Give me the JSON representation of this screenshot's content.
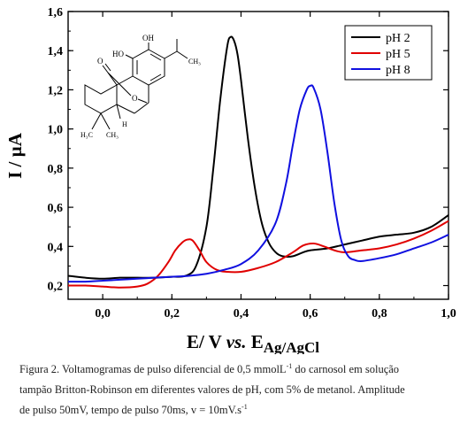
{
  "chart_data": {
    "type": "line",
    "xlabel_parts": {
      "lead": "E/ V ",
      "italic": "vs.",
      "symbol": " E",
      "subscript": "Ag/AgCl"
    },
    "ylabel": "I / µA",
    "xlim": [
      -0.1,
      1.0
    ],
    "ylim": [
      0.13,
      1.6
    ],
    "x_ticks": [
      0.0,
      0.2,
      0.4,
      0.6,
      0.8,
      1.0
    ],
    "x_tick_labels": [
      "0,0",
      "0,2",
      "0,4",
      "0,6",
      "0,8",
      "1,0"
    ],
    "y_ticks": [
      0.2,
      0.4,
      0.6,
      0.8,
      1.0,
      1.2,
      1.4,
      1.6
    ],
    "y_tick_labels": [
      "0,2",
      "0,4",
      "0,6",
      "0,8",
      "1,0",
      "1,2",
      "1,4",
      "1,6"
    ],
    "grid": false,
    "legend_position": "top-right",
    "series": [
      {
        "name": "pH 2",
        "color": "#000000",
        "x": [
          -0.1,
          -0.05,
          0.0,
          0.05,
          0.1,
          0.15,
          0.2,
          0.24,
          0.27,
          0.3,
          0.32,
          0.34,
          0.36,
          0.37,
          0.38,
          0.39,
          0.4,
          0.42,
          0.44,
          0.46,
          0.48,
          0.5,
          0.52,
          0.55,
          0.58,
          0.6,
          0.65,
          0.7,
          0.75,
          0.8,
          0.85,
          0.9,
          0.95,
          1.0
        ],
        "y": [
          0.25,
          0.24,
          0.235,
          0.24,
          0.24,
          0.24,
          0.245,
          0.25,
          0.3,
          0.5,
          0.8,
          1.15,
          1.42,
          1.47,
          1.45,
          1.38,
          1.25,
          0.95,
          0.7,
          0.52,
          0.42,
          0.37,
          0.35,
          0.35,
          0.37,
          0.38,
          0.39,
          0.41,
          0.43,
          0.45,
          0.46,
          0.47,
          0.5,
          0.56
        ]
      },
      {
        "name": "pH 5",
        "color": "#e00000",
        "x": [
          -0.1,
          -0.05,
          0.0,
          0.05,
          0.1,
          0.13,
          0.16,
          0.19,
          0.21,
          0.23,
          0.245,
          0.26,
          0.28,
          0.3,
          0.33,
          0.36,
          0.4,
          0.45,
          0.5,
          0.55,
          0.58,
          0.61,
          0.64,
          0.67,
          0.7,
          0.75,
          0.8,
          0.85,
          0.9,
          0.95,
          1.0
        ],
        "y": [
          0.2,
          0.2,
          0.195,
          0.19,
          0.195,
          0.21,
          0.25,
          0.32,
          0.38,
          0.42,
          0.435,
          0.43,
          0.38,
          0.32,
          0.28,
          0.27,
          0.27,
          0.29,
          0.32,
          0.37,
          0.405,
          0.415,
          0.4,
          0.38,
          0.37,
          0.38,
          0.39,
          0.41,
          0.44,
          0.48,
          0.53
        ]
      },
      {
        "name": "pH 8",
        "color": "#1010e0",
        "x": [
          -0.1,
          -0.05,
          0.0,
          0.05,
          0.1,
          0.15,
          0.2,
          0.25,
          0.3,
          0.35,
          0.4,
          0.45,
          0.5,
          0.53,
          0.55,
          0.57,
          0.59,
          0.6,
          0.61,
          0.63,
          0.65,
          0.67,
          0.69,
          0.71,
          0.73,
          0.75,
          0.8,
          0.85,
          0.9,
          0.95,
          1.0
        ],
        "y": [
          0.22,
          0.22,
          0.225,
          0.23,
          0.235,
          0.24,
          0.245,
          0.25,
          0.26,
          0.28,
          0.31,
          0.38,
          0.52,
          0.72,
          0.92,
          1.1,
          1.2,
          1.22,
          1.21,
          1.1,
          0.88,
          0.62,
          0.43,
          0.35,
          0.33,
          0.325,
          0.34,
          0.36,
          0.39,
          0.42,
          0.46
        ]
      }
    ]
  },
  "structure_labels": {
    "hydroxyl_top": "OH",
    "hydroxyl_left": "HO",
    "ring_oxygen": "O",
    "carbonyl_oxygen": "O",
    "hydrogen": "H",
    "methyl_left": "H₃C",
    "methyl_right": "CH₃",
    "isopropyl_methyl": "CH₃"
  },
  "caption": {
    "line1_before": "Figura 2. Voltamogramas de pulso diferencial de 0,5 mmolL",
    "line1_sup": "-1",
    "line1_after": " do carnosol em solução",
    "line2": "tampão Britton-Robinson em diferentes valores de pH, com 5% de metanol. Amplitude",
    "line3_before": "de pulso 50mV, tempo de pulso 70ms, v = 10mV.s",
    "line3_sup": "-1"
  }
}
